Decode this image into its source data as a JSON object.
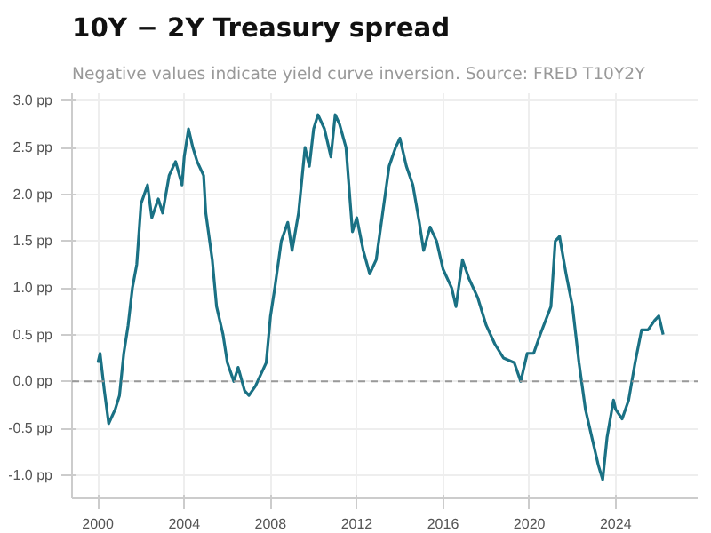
{
  "chart_data": {
    "type": "line",
    "title": "10Y − 2Y Treasury spread",
    "subtitle": "Negative values indicate yield curve inversion. Source: FRED T10Y2Y",
    "x": [
      2000.0,
      2000.1,
      2000.3,
      2000.5,
      2000.8,
      2001.0,
      2001.2,
      2001.4,
      2001.6,
      2001.8,
      2002.0,
      2002.3,
      2002.5,
      2002.8,
      2003.0,
      2003.3,
      2003.6,
      2003.9,
      2004.0,
      2004.2,
      2004.4,
      2004.6,
      2004.9,
      2005.0,
      2005.3,
      2005.5,
      2005.8,
      2006.0,
      2006.3,
      2006.5,
      2006.8,
      2007.0,
      2007.3,
      2007.5,
      2007.8,
      2008.0,
      2008.2,
      2008.5,
      2008.8,
      2009.0,
      2009.3,
      2009.6,
      2009.8,
      2010.0,
      2010.2,
      2010.5,
      2010.8,
      2011.0,
      2011.2,
      2011.5,
      2011.8,
      2012.0,
      2012.3,
      2012.6,
      2012.9,
      2013.2,
      2013.5,
      2013.8,
      2014.0,
      2014.3,
      2014.6,
      2014.9,
      2015.1,
      2015.4,
      2015.7,
      2016.0,
      2016.4,
      2016.6,
      2016.9,
      2017.2,
      2017.6,
      2018.0,
      2018.4,
      2018.8,
      2019.3,
      2019.6,
      2019.9,
      2020.2,
      2020.5,
      2021.0,
      2021.2,
      2021.4,
      2021.7,
      2022.0,
      2022.3,
      2022.6,
      2022.9,
      2023.2,
      2023.4,
      2023.6,
      2023.9,
      2024.0,
      2024.3,
      2024.6,
      2024.9,
      2025.2,
      2025.5,
      2025.8,
      2026.0,
      2026.2
    ],
    "series": [
      {
        "color": "#1a7184",
        "values": [
          0.2,
          0.3,
          -0.1,
          -0.45,
          -0.3,
          -0.15,
          0.3,
          0.6,
          1.0,
          1.25,
          1.9,
          2.1,
          1.75,
          1.95,
          1.8,
          2.2,
          2.35,
          2.1,
          2.4,
          2.7,
          2.5,
          2.35,
          2.2,
          1.8,
          1.3,
          0.8,
          0.5,
          0.2,
          0.0,
          0.15,
          -0.1,
          -0.15,
          -0.05,
          0.05,
          0.2,
          0.7,
          1.0,
          1.5,
          1.7,
          1.4,
          1.8,
          2.5,
          2.3,
          2.7,
          2.85,
          2.7,
          2.4,
          2.85,
          2.75,
          2.5,
          1.6,
          1.75,
          1.4,
          1.15,
          1.3,
          1.8,
          2.3,
          2.5,
          2.6,
          2.3,
          2.1,
          1.7,
          1.4,
          1.65,
          1.5,
          1.2,
          1.0,
          0.8,
          1.3,
          1.1,
          0.9,
          0.6,
          0.4,
          0.25,
          0.2,
          0.0,
          0.3,
          0.3,
          0.5,
          0.8,
          1.5,
          1.55,
          1.15,
          0.8,
          0.2,
          -0.3,
          -0.6,
          -0.9,
          -1.05,
          -0.6,
          -0.2,
          -0.3,
          -0.4,
          -0.2,
          0.2,
          0.55,
          0.55,
          0.65,
          0.7,
          0.5
        ]
      }
    ],
    "xlim": [
      1998.8,
      2027.8
    ],
    "ylim": [
      -1.25,
      3.08
    ],
    "xticks": [
      2000,
      2004,
      2008,
      2012,
      2016,
      2020,
      2024
    ],
    "yticks": [
      {
        "value": -1.0,
        "label": "-1.0 pp"
      },
      {
        "value": -0.5,
        "label": "-0.5 pp"
      },
      {
        "value": 0.0,
        "label": "0.0 pp"
      },
      {
        "value": 0.5,
        "label": "0.5 pp"
      },
      {
        "value": 1.0,
        "label": "1.0 pp"
      },
      {
        "value": 1.5,
        "label": "1.5 pp"
      },
      {
        "value": 2.0,
        "label": "2.0 pp"
      },
      {
        "value": 2.5,
        "label": "2.5 pp"
      },
      {
        "value": 3.0,
        "label": "3.0 pp"
      }
    ],
    "ref_lines": [
      {
        "axis": "y",
        "value": 0,
        "color": "#999999",
        "line_style": "dashed"
      }
    ],
    "grid": true,
    "marker": "none",
    "line_style": "solid"
  }
}
